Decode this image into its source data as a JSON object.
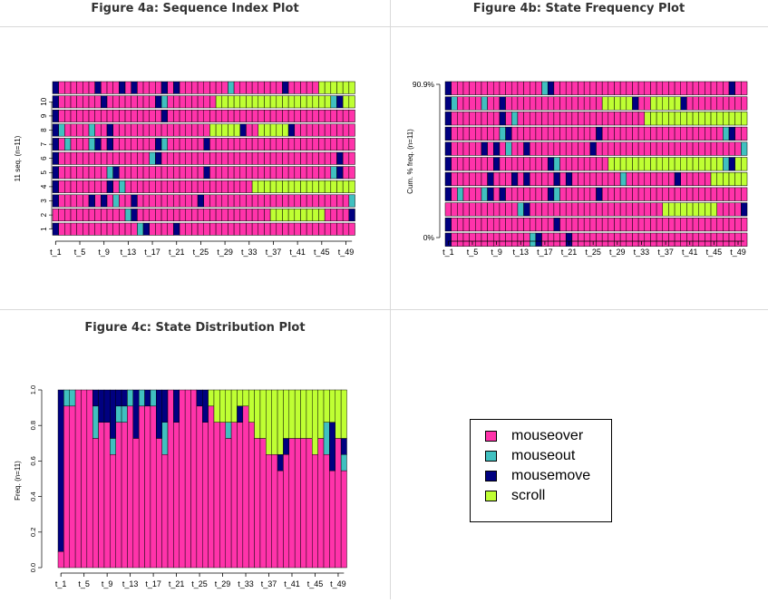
{
  "titles": {
    "fig_a": "Figure 4a: Sequence Index Plot",
    "fig_b": "Figure 4b: State Frequency Plot",
    "fig_c": "Figure 4c: State Distribution Plot"
  },
  "colors": {
    "mouseover": "#ff33aa",
    "mouseout": "#40c0c0",
    "mousemove": "#000080",
    "scroll": "#bfff33"
  },
  "legend": {
    "items": [
      {
        "state": "mouseover",
        "label": "mouseover"
      },
      {
        "state": "mouseout",
        "label": "mouseout"
      },
      {
        "state": "mousemove",
        "label": "mousemove"
      },
      {
        "state": "scroll",
        "label": "scroll"
      }
    ]
  },
  "chart_data": [
    {
      "type": "sequence_index",
      "ylabel": "11 seq. (n=11)",
      "x_tick_labels": [
        "t_1",
        "t_5",
        "t_9",
        "t_13",
        "t_17",
        "t_21",
        "t_25",
        "t_29",
        "t_33",
        "t_37",
        "t_41",
        "t_45",
        "t_49"
      ],
      "y_tick_labels": [
        "1",
        "2",
        "3",
        "4",
        "5",
        "6",
        "7",
        "8",
        "9",
        "10"
      ],
      "state_codes": {
        "P": "mouseover",
        "C": "mouseout",
        "N": "mousemove",
        "S": "scroll"
      },
      "sequences": [
        "NPPPPPPPPPPPPPCNPPPPNPPPPPPPPPPPPPPPPPPPPPPPPPPPPP",
        "PPPPPPPPPPPPCNPPPPPPPPPPPPPPPPPPPPPPSSSSSSSSSPPPPN",
        "NPPPPPNPNPCPPNPPPPPPPPPPNPPPPPPPPPPPPPPPPPPPPPPPPC",
        "NPPPPPPPPNPCPPPPPPPPPPPPPPPPPPPPPSSSSSSSSSSSSSSSSS",
        "NPPPPPPPPCNPPPPPPPPPPPPPPNPPPPPPPPPPPPPPPPPPPPCNPP",
        "NPPPPPPPPPPPPPPPCNPPPPPPPPPPPPPPPPPPPPPPPPPPPPPNPP",
        "NPCPPPCNPNPPPPPPPNCPPPPPPNPPPPPPPPPPPPPPPPPPPPPPPP",
        "NCPPPPCPPNPPPPPPPPPPPPPPPPSSSSSNPPSSSSSNPPPPPPPPPP",
        "NPPPPPPPPPPPPPPPPPNPPPPPPPPPPPPPPPPPPPPPPPPPPPPPPP",
        "NPPPPPPPNPPPPPPPPNCPPPPPPPPSSSSSSSSSSSSSSSSSSSCNSS",
        "NPPPPPPNPPPNPNPPPPNPNPPPPPPPPCPPPPPPPPNPPPPPSSSSSS"
      ],
      "row_labels_shown": [
        "1",
        "2",
        "3",
        "4",
        "5",
        "6",
        "7",
        "8",
        "9",
        "10"
      ]
    },
    {
      "type": "state_frequency",
      "ylabel": "Cum. % freq. (n=11)",
      "y_tick_labels": [
        "0%",
        "90.9%"
      ],
      "x_tick_labels": [
        "t_1",
        "t_5",
        "t_9",
        "t_13",
        "t_17",
        "t_21",
        "t_25",
        "t_29",
        "t_33",
        "t_37",
        "t_41",
        "t_45",
        "t_49"
      ],
      "rows_bottom_to_top": [
        1,
        9,
        2,
        7,
        11,
        10,
        3,
        5,
        4,
        8,
        6
      ]
    },
    {
      "type": "state_distribution",
      "ylabel": "Freq. (n=11)",
      "ylim": [
        0,
        1
      ],
      "y_tick_labels": [
        "0.0",
        "0.2",
        "0.4",
        "0.6",
        "0.8",
        "1.0"
      ],
      "x_tick_labels": [
        "t_1",
        "t_5",
        "t_9",
        "t_13",
        "t_17",
        "t_21",
        "t_25",
        "t_29",
        "t_33",
        "t_37",
        "t_41",
        "t_45",
        "t_49"
      ],
      "stack_order_bottom_to_top": [
        "mouseover",
        "mouseout",
        "mousemove",
        "scroll"
      ]
    }
  ]
}
